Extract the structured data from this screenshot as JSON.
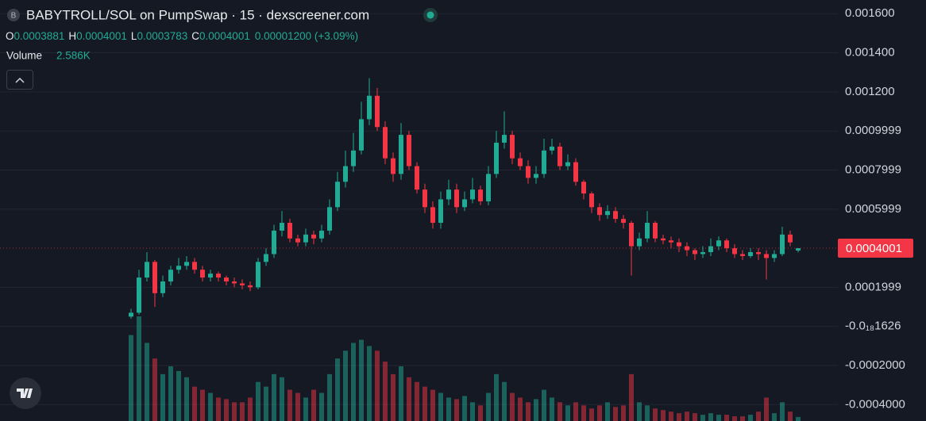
{
  "header": {
    "symbol_badge": "B",
    "title": "BABYTROLL/SOL on PumpSwap · 15 · dexscreener.com",
    "ohlc": [
      {
        "key": "O",
        "value": "0.0003881"
      },
      {
        "key": "H",
        "value": "0.0004001"
      },
      {
        "key": "L",
        "value": "0.0003783"
      },
      {
        "key": "C",
        "value": "0.0004001"
      }
    ],
    "change": "0.00001200 (+3.09%)",
    "volume_label": "Volume",
    "volume_value": "2.586K"
  },
  "chart_data": {
    "type": "candlestick",
    "up_color": "#22ab94",
    "down_color": "#f23645",
    "ylim": [
      -0.000484,
      0.00167
    ],
    "yticks": [
      {
        "value": 0.0016,
        "label": "0.001600"
      },
      {
        "value": 0.0014,
        "label": "0.001400"
      },
      {
        "value": 0.0012,
        "label": "0.001200"
      },
      0.0009999,
      0.0007999,
      0.0005999,
      0.0001999,
      {
        "value": -1.626e-22,
        "label": "-0.0₁₈1626"
      },
      {
        "value": -0.0002,
        "label": "-0.0002000"
      },
      {
        "value": -0.0004,
        "label": "-0.0004000"
      }
    ],
    "grid": true,
    "last_price": {
      "value": 0.0004001,
      "label": "0.0004001",
      "color": "#f23645"
    },
    "open": [
      5e-05,
      7e-05,
      0.00025,
      0.00033,
      0.00017,
      0.00023,
      0.00029,
      0.00031,
      0.00033,
      0.00029,
      0.00025,
      0.00027,
      0.00025,
      0.00023,
      0.00022,
      0.00021,
      0.0002,
      0.00033,
      0.00037,
      0.00049,
      0.00053,
      0.00045,
      0.00043,
      0.00047,
      0.00045,
      0.00049,
      0.00061,
      0.00074,
      0.00082,
      0.0009,
      0.00106,
      0.00118,
      0.00102,
      0.00086,
      0.00078,
      0.00098,
      0.00082,
      0.0007,
      0.00061,
      0.00053,
      0.00065,
      0.0007,
      0.00061,
      0.00065,
      0.0007,
      0.00064,
      0.00078,
      0.00094,
      0.00098,
      0.00086,
      0.00082,
      0.00076,
      0.00078,
      0.0009,
      0.00092,
      0.00082,
      0.00084,
      0.00074,
      0.00068,
      0.00061,
      0.00057,
      0.00059,
      0.00055,
      0.00053,
      0.00041,
      0.00045,
      0.00053,
      0.00045,
      0.00044,
      0.00043,
      0.00041,
      0.00039,
      0.00037,
      0.00038,
      0.00041,
      0.00044,
      0.0004,
      0.00037,
      0.00036,
      0.00038,
      0.00037,
      0.00035,
      0.00037,
      0.00047,
      0.0003881
    ],
    "high": [
      9e-05,
      0.00029,
      0.00038,
      0.00034,
      0.00026,
      0.00031,
      0.00035,
      0.00036,
      0.00035,
      0.00031,
      0.00029,
      0.00028,
      0.00026,
      0.00025,
      0.00024,
      0.00023,
      0.00035,
      0.0004,
      0.00052,
      0.00059,
      0.00055,
      0.00047,
      0.0005,
      0.00049,
      0.00052,
      0.00065,
      0.00079,
      0.0009,
      0.00099,
      0.00115,
      0.00127,
      0.00122,
      0.00105,
      0.00089,
      0.00104,
      0.001,
      0.00084,
      0.00073,
      0.00064,
      0.00069,
      0.00075,
      0.00073,
      0.00069,
      0.00076,
      0.00072,
      0.00082,
      0.001,
      0.0011,
      0.001,
      0.00089,
      0.00085,
      0.00082,
      0.00096,
      0.00096,
      0.00094,
      0.00088,
      0.00086,
      0.00075,
      0.00069,
      0.00063,
      0.00062,
      0.00061,
      0.00057,
      0.00054,
      0.00048,
      0.00059,
      0.00054,
      0.00047,
      0.00046,
      0.00045,
      0.00043,
      0.0004,
      0.00041,
      0.00045,
      0.00046,
      0.00045,
      0.00042,
      0.00039,
      0.0004,
      0.0004,
      0.00039,
      0.00039,
      0.00051,
      0.00049,
      0.0004001
    ],
    "low": [
      4e-05,
      6e-05,
      0.00023,
      0.0001,
      0.00015,
      0.00021,
      0.00027,
      0.00029,
      0.00027,
      0.00023,
      0.00023,
      0.00023,
      0.00021,
      0.0002,
      0.00019,
      0.00018,
      0.00019,
      0.00031,
      0.00035,
      0.00046,
      0.00043,
      0.00041,
      0.00041,
      0.00042,
      0.00043,
      0.00047,
      0.00059,
      0.00071,
      0.00079,
      0.00088,
      0.00103,
      0.001,
      0.00083,
      0.00074,
      0.00075,
      0.0008,
      0.00068,
      0.00058,
      0.0005,
      0.0005,
      0.00062,
      0.00058,
      0.00059,
      0.00063,
      0.00062,
      0.00062,
      0.00076,
      0.00091,
      0.00083,
      0.0008,
      0.00073,
      0.00073,
      0.00076,
      0.00088,
      0.0008,
      0.0008,
      0.00072,
      0.00065,
      0.00058,
      0.00054,
      0.00055,
      0.00053,
      0.0005,
      0.00026,
      0.00039,
      0.00043,
      0.00043,
      0.00042,
      0.0004,
      0.00038,
      0.00036,
      0.00034,
      0.00035,
      0.00036,
      0.00039,
      0.00038,
      0.00035,
      0.00034,
      0.00035,
      0.00034,
      0.00024,
      0.00033,
      0.00036,
      0.00041,
      0.0003783
    ],
    "close": [
      7e-05,
      0.00025,
      0.00033,
      0.00017,
      0.00023,
      0.00029,
      0.00031,
      0.00033,
      0.00029,
      0.00025,
      0.00027,
      0.00025,
      0.00023,
      0.00022,
      0.00021,
      0.0002,
      0.00033,
      0.00037,
      0.00049,
      0.00053,
      0.00045,
      0.00043,
      0.00047,
      0.00045,
      0.00049,
      0.00061,
      0.00074,
      0.00082,
      0.0009,
      0.00106,
      0.00118,
      0.00102,
      0.00086,
      0.00078,
      0.00098,
      0.00082,
      0.0007,
      0.00061,
      0.00053,
      0.00065,
      0.0007,
      0.00061,
      0.00065,
      0.0007,
      0.00064,
      0.00078,
      0.00094,
      0.00098,
      0.00086,
      0.00082,
      0.00076,
      0.00078,
      0.0009,
      0.00092,
      0.00082,
      0.00084,
      0.00074,
      0.00068,
      0.00061,
      0.00057,
      0.00059,
      0.00055,
      0.00053,
      0.00041,
      0.00045,
      0.00053,
      0.00045,
      0.00044,
      0.00043,
      0.00041,
      0.00039,
      0.00037,
      0.00038,
      0.00041,
      0.00044,
      0.0004,
      0.00037,
      0.00036,
      0.00038,
      0.00037,
      0.00035,
      0.00037,
      0.00047,
      0.00043,
      0.0004001
    ],
    "volume": [
      55000,
      67000,
      50000,
      40000,
      30000,
      35000,
      32000,
      28000,
      22000,
      20000,
      18000,
      15000,
      14000,
      12000,
      12000,
      15000,
      25000,
      22000,
      30000,
      28000,
      20000,
      18000,
      15000,
      20000,
      18000,
      30000,
      40000,
      45000,
      50000,
      52000,
      48000,
      45000,
      38000,
      30000,
      35000,
      28000,
      25000,
      22000,
      20000,
      18000,
      15000,
      14000,
      16000,
      12000,
      10000,
      18000,
      30000,
      25000,
      18000,
      15000,
      12000,
      14000,
      20000,
      15000,
      12000,
      10000,
      12000,
      10000,
      8000,
      10000,
      12000,
      9000,
      10000,
      30000,
      12000,
      10000,
      8000,
      7000,
      6000,
      5000,
      6000,
      5000,
      4000,
      5000,
      4000,
      4000,
      3000,
      3000,
      4000,
      6000,
      15000,
      5000,
      12000,
      6000,
      2586
    ]
  }
}
